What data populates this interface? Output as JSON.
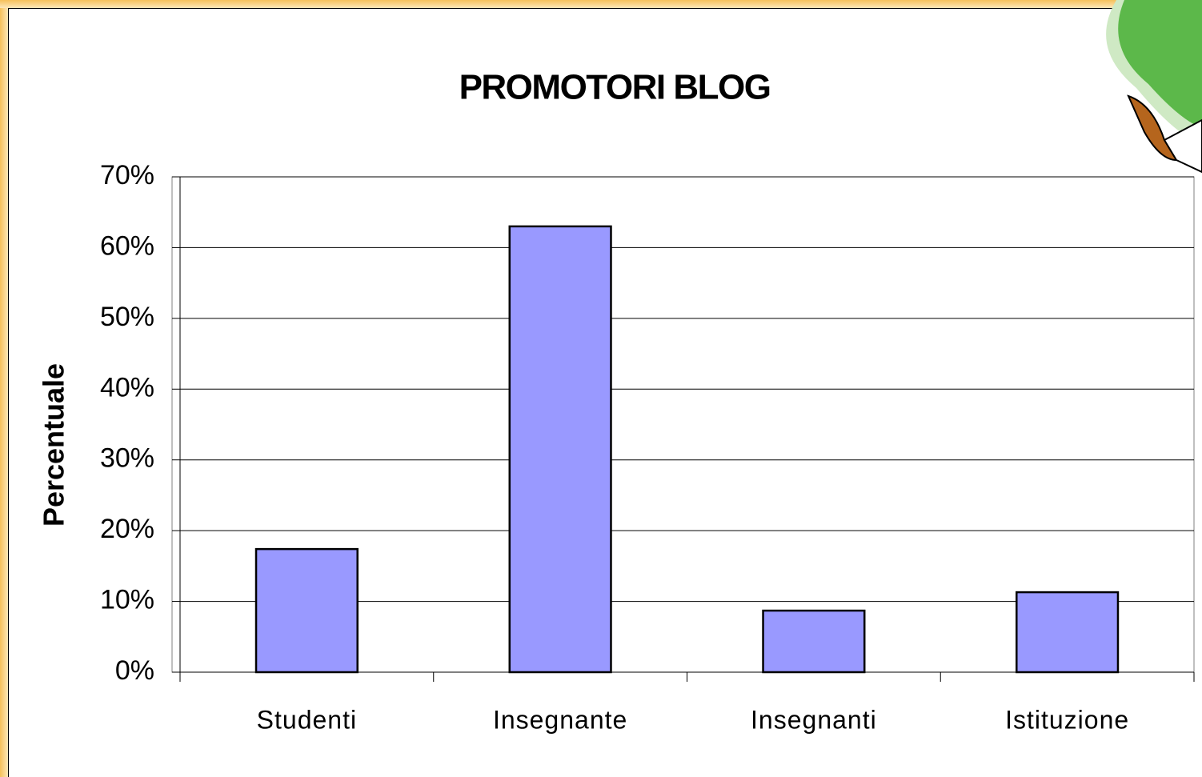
{
  "chart_data": {
    "type": "bar",
    "title": "PROMOTORI BLOG",
    "y_label": "Percentuale",
    "categories": [
      "Studenti",
      "Insegnante",
      "Insegnanti",
      "Istituzione"
    ],
    "values": [
      17.4,
      63,
      8.7,
      11.3
    ],
    "color": "#9999ff",
    "ylim": [
      0,
      70
    ],
    "yticks": [
      {
        "value": 0,
        "label": "0%"
      },
      {
        "value": 10,
        "label": "10%"
      },
      {
        "value": 20,
        "label": "20%"
      },
      {
        "value": 30,
        "label": "30%"
      },
      {
        "value": 40,
        "label": "40%"
      },
      {
        "value": 50,
        "label": "50%"
      },
      {
        "value": 60,
        "label": "60%"
      },
      {
        "value": 70,
        "label": "70%"
      }
    ],
    "grid": true
  }
}
